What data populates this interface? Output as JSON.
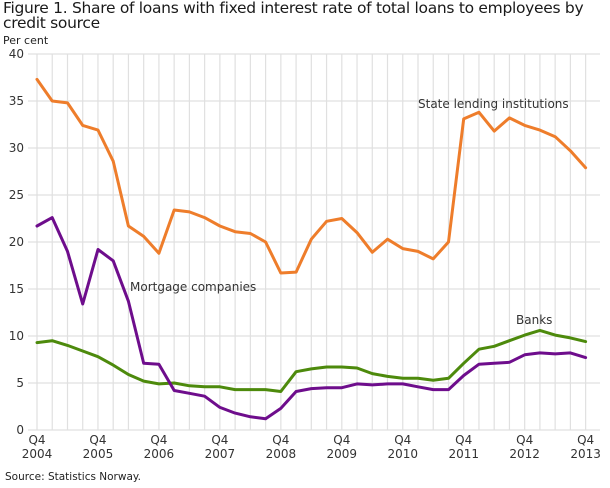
{
  "title": "Figure 1. Share of loans with fixed interest rate of total loans to employees by credit source",
  "unit_label": "Per cent",
  "source": "Source: Statistics Norway.",
  "colors": {
    "state_lending": "#ee7d2b",
    "mortgage": "#6e0d8c",
    "banks": "#4d8a0c",
    "grid": "#e0e0e0"
  },
  "chart_data": {
    "type": "line",
    "title": "Figure 1. Share of loans with fixed interest rate of total loans to employees by credit source",
    "xlabel": "",
    "ylabel": "Per cent",
    "ylim": [
      0,
      40
    ],
    "yticks": [
      0,
      5,
      10,
      15,
      20,
      25,
      30,
      35,
      40
    ],
    "grid": true,
    "legend_position": "inline labels",
    "x_tick_labels": [
      "Q4 2004",
      "Q4 2005",
      "Q4 2006",
      "Q4 2007",
      "Q4 2008",
      "Q4 2009",
      "Q4 2010",
      "Q4 2011",
      "Q4 2012",
      "Q4 2013"
    ],
    "x": [
      "2004Q4",
      "2005Q1",
      "2005Q2",
      "2005Q3",
      "2005Q4",
      "2006Q1",
      "2006Q2",
      "2006Q3",
      "2006Q4",
      "2007Q1",
      "2007Q2",
      "2007Q3",
      "2007Q4",
      "2008Q1",
      "2008Q2",
      "2008Q3",
      "2008Q4",
      "2009Q1",
      "2009Q2",
      "2009Q3",
      "2009Q4",
      "2010Q1",
      "2010Q2",
      "2010Q3",
      "2010Q4",
      "2011Q1",
      "2011Q2",
      "2011Q3",
      "2011Q4",
      "2012Q1",
      "2012Q2",
      "2012Q3",
      "2012Q4",
      "2013Q1",
      "2013Q2",
      "2013Q3",
      "2013Q4"
    ],
    "series": [
      {
        "name": "State lending institutions",
        "color": "#ee7d2b",
        "values": [
          37.3,
          35.0,
          34.8,
          32.4,
          31.9,
          28.6,
          21.7,
          20.6,
          18.8,
          23.4,
          23.2,
          22.6,
          21.7,
          21.1,
          20.9,
          20.0,
          16.7,
          16.8,
          20.3,
          22.2,
          22.5,
          21.0,
          18.9,
          20.3,
          19.3,
          19.0,
          18.2,
          20.0,
          33.1,
          33.8,
          31.8,
          33.2,
          32.4,
          31.9,
          31.2,
          29.7,
          27.9
        ]
      },
      {
        "name": "Mortgage companies",
        "color": "#6e0d8c",
        "values": [
          21.7,
          22.6,
          19.0,
          13.4,
          19.2,
          18.0,
          13.7,
          7.1,
          7.0,
          4.2,
          3.9,
          3.6,
          2.4,
          1.8,
          1.4,
          1.2,
          2.3,
          4.1,
          4.4,
          4.5,
          4.5,
          4.9,
          4.8,
          4.9,
          4.9,
          4.6,
          4.3,
          4.3,
          5.8,
          7.0,
          7.1,
          7.2,
          8.0,
          8.2,
          8.1,
          8.2,
          7.7
        ]
      },
      {
        "name": "Banks",
        "color": "#4d8a0c",
        "values": [
          9.3,
          9.5,
          9.0,
          8.4,
          7.8,
          6.9,
          5.9,
          5.2,
          4.9,
          5.0,
          4.7,
          4.6,
          4.6,
          4.3,
          4.3,
          4.3,
          4.1,
          6.2,
          6.5,
          6.7,
          6.7,
          6.6,
          6.0,
          5.7,
          5.5,
          5.5,
          5.3,
          5.5,
          7.1,
          8.6,
          8.9,
          9.5,
          10.1,
          10.6,
          10.1,
          9.8,
          9.4
        ]
      }
    ],
    "annotations": [
      {
        "text": "State lending institutions",
        "series": "State lending institutions"
      },
      {
        "text": "Mortgage companies",
        "series": "Mortgage companies"
      },
      {
        "text": "Banks",
        "series": "Banks"
      }
    ]
  }
}
